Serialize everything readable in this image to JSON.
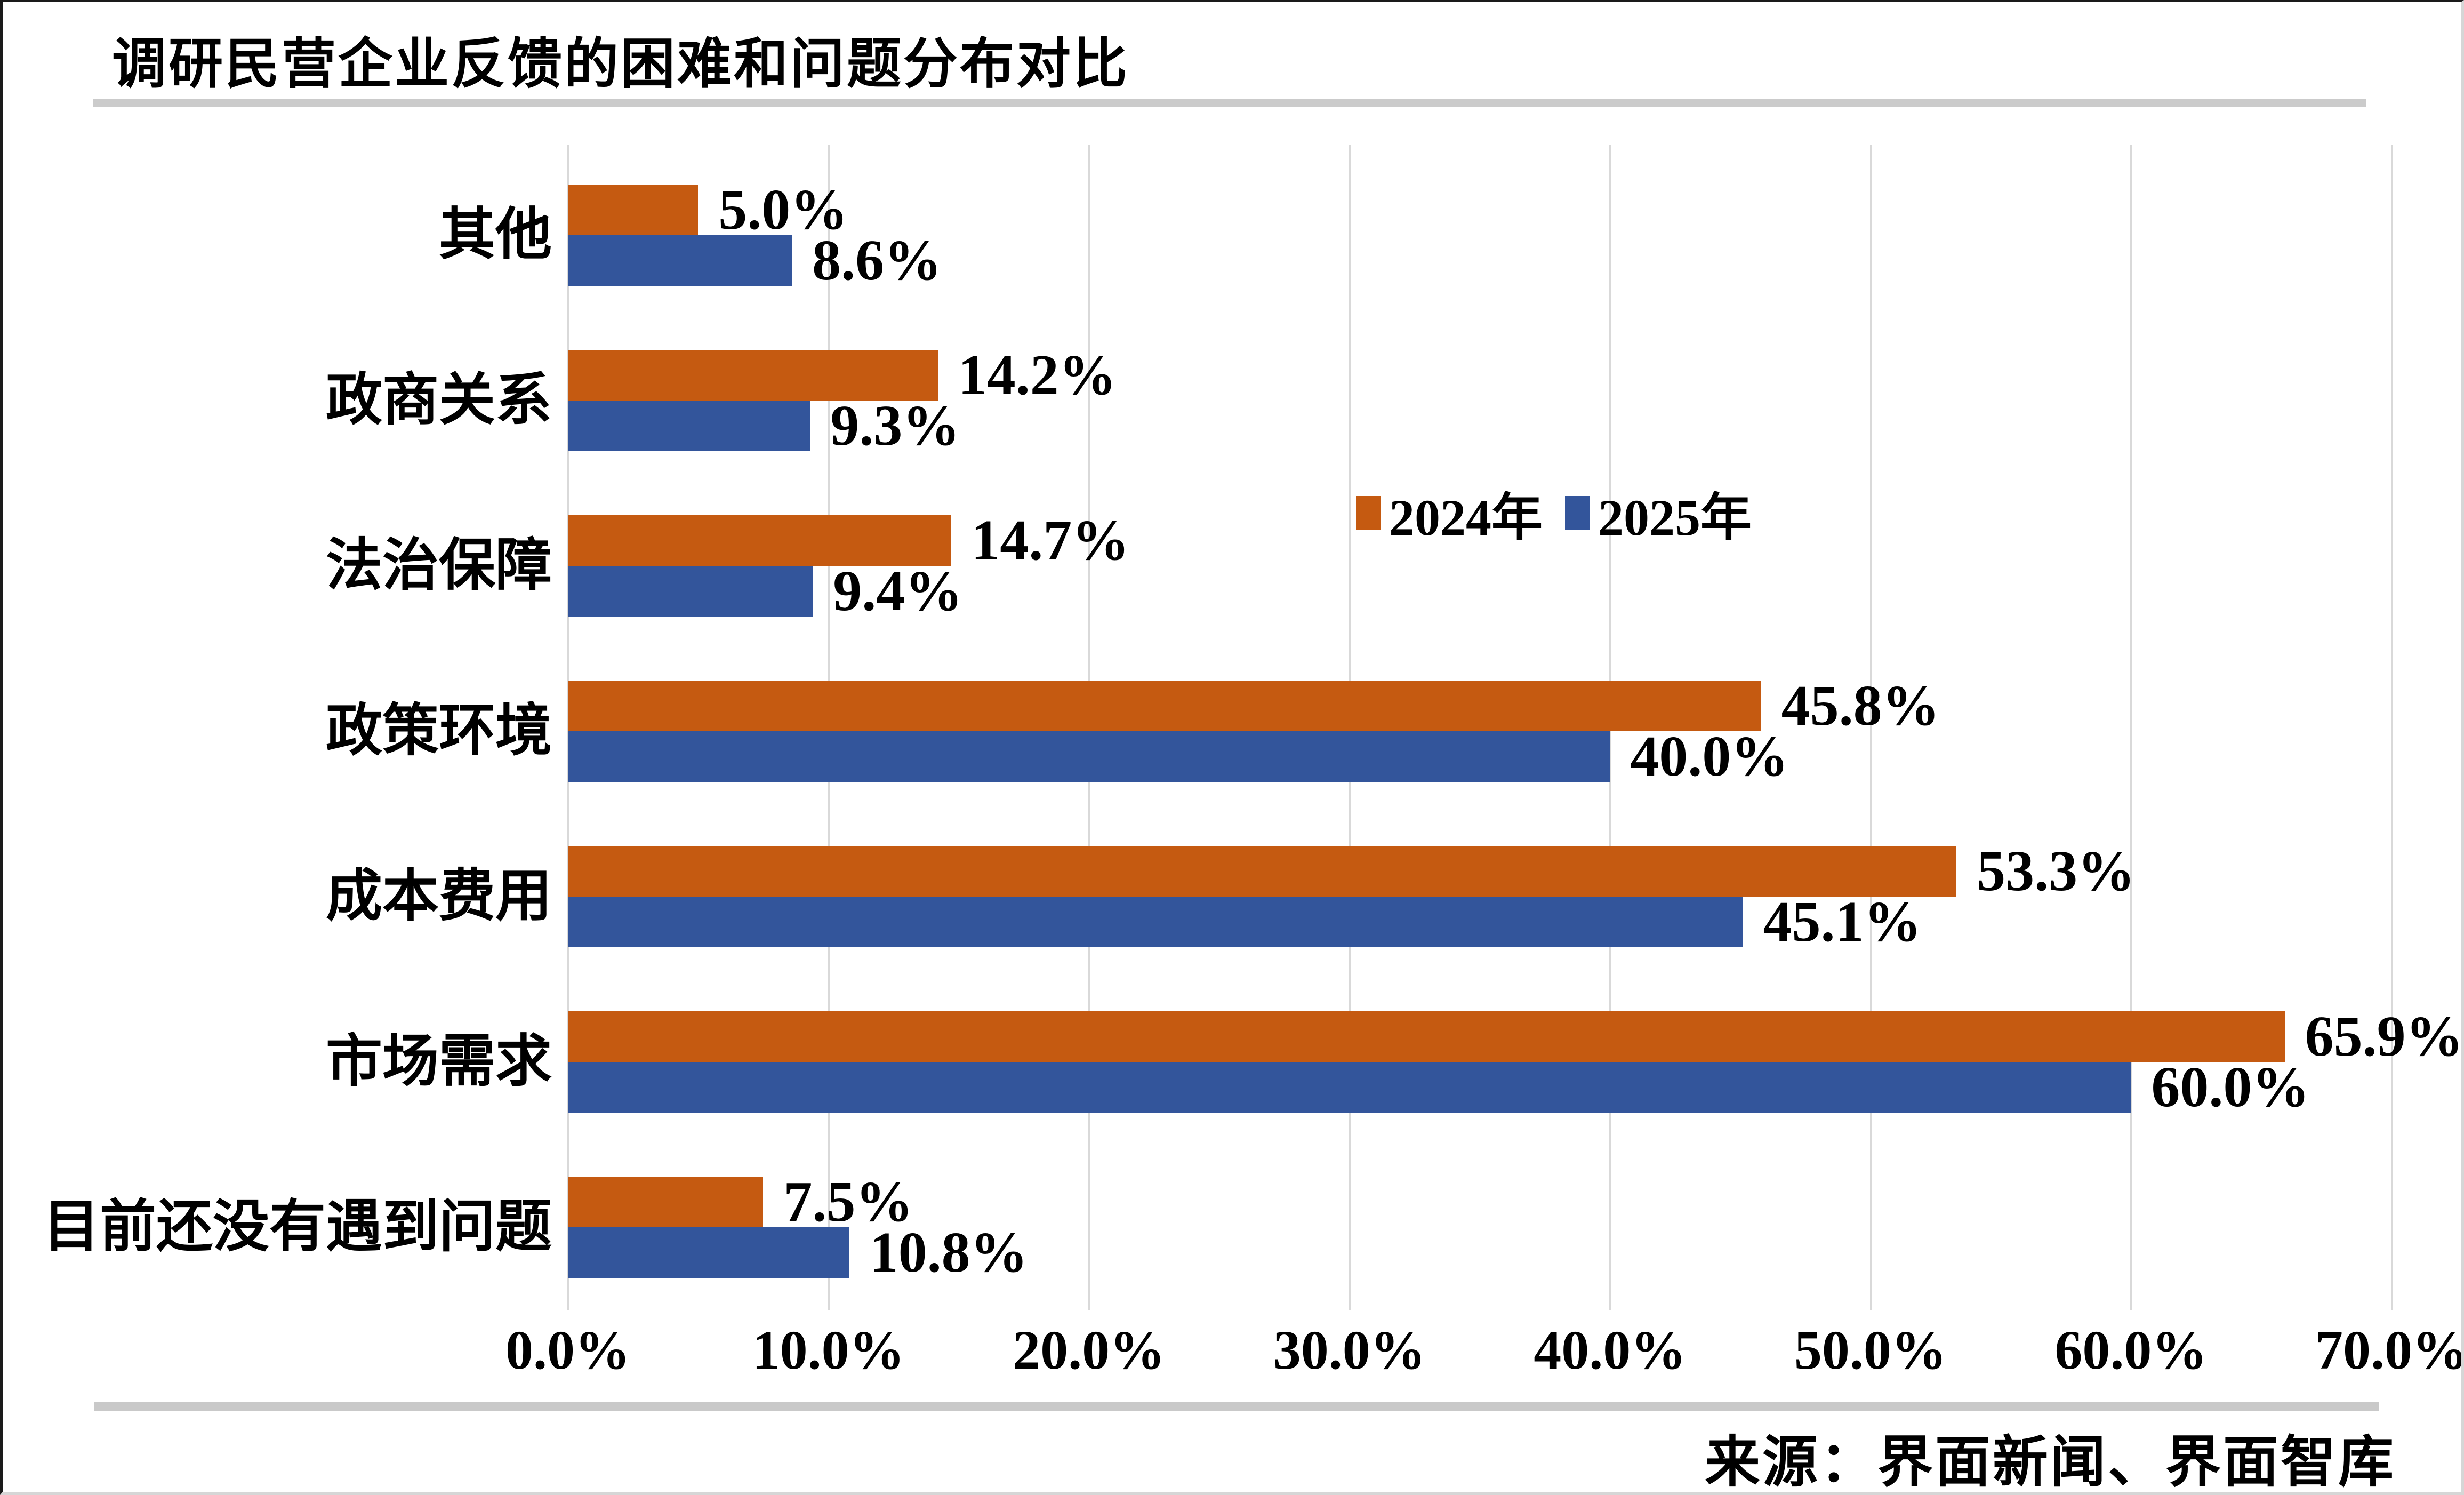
{
  "page": {
    "title": "调研民营企业反馈的困难和问题分布对比",
    "source": "来源：界面新闻、界面智库"
  },
  "colors": {
    "series_2024": "#C55A11",
    "series_2025": "#33559B",
    "gridline": "#D9D9D9",
    "divider": "#C9C9C9"
  },
  "chart_data": {
    "type": "bar",
    "orientation": "horizontal",
    "title": "调研民营企业反馈的困难和问题分布对比",
    "categories": [
      "其他",
      "政商关系",
      "法治保障",
      "政策环境",
      "成本费用",
      "市场需求",
      "目前还没有遇到问题"
    ],
    "series": [
      {
        "name": "2024年",
        "color": "#C55A11",
        "values": [
          5.0,
          14.2,
          14.7,
          45.8,
          53.3,
          65.9,
          7.5
        ],
        "labels": [
          "5.0%",
          "14.2%",
          "14.7%",
          "45.8%",
          "53.3%",
          "65.9%",
          "7.5%"
        ]
      },
      {
        "name": "2025年",
        "color": "#33559B",
        "values": [
          8.6,
          9.3,
          9.4,
          40.0,
          45.1,
          60.0,
          10.8
        ],
        "labels": [
          "8.6%",
          "9.3%",
          "9.4%",
          "40.0%",
          "45.1%",
          "60.0%",
          "10.8%"
        ]
      }
    ],
    "xlim": [
      0,
      70
    ],
    "x_ticks": [
      "0.0%",
      "10.0%",
      "20.0%",
      "30.0%",
      "40.0%",
      "50.0%",
      "60.0%",
      "70.0%"
    ],
    "grid": true,
    "legend_position": "inside-center-right"
  }
}
